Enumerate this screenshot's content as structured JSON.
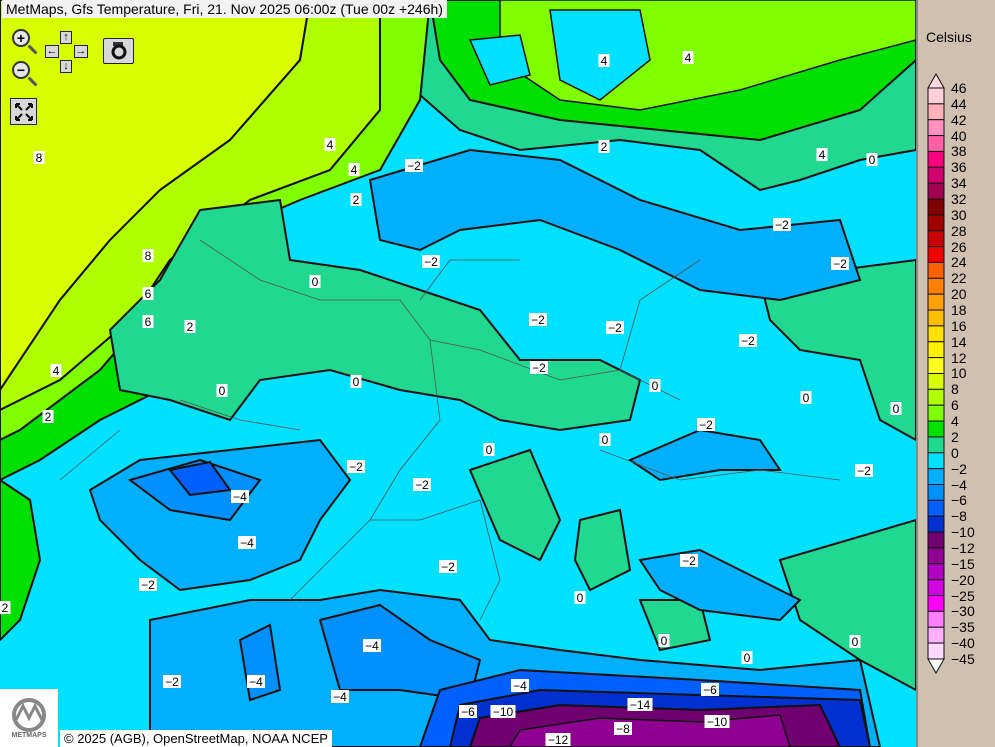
{
  "title": "MetMaps, Gfs Temperature, Fri, 21. Nov 2025 06:00z (Tue 00z +246h)",
  "controls": {
    "zoom_in": "+",
    "zoom_out": "−",
    "pan_up": "↑",
    "pan_down": "↓",
    "pan_left": "←",
    "pan_right": "→",
    "icons": [
      "zoom-in-icon",
      "zoom-out-icon",
      "pan-arrows-icon",
      "camera-icon",
      "fullscreen-icon"
    ]
  },
  "credit": "© 2025 (AGB), OpenStreetMap, NOAA NCEP",
  "logo_text": "METMAPS",
  "legend": {
    "unit": "Celsius",
    "labels": [
      "46",
      "44",
      "42",
      "40",
      "38",
      "36",
      "34",
      "32",
      "30",
      "28",
      "26",
      "24",
      "22",
      "20",
      "18",
      "16",
      "14",
      "12",
      "10",
      "8",
      "6",
      "4",
      "2",
      "0",
      "−2",
      "−4",
      "−6",
      "−8",
      "−10",
      "−12",
      "−15",
      "−20",
      "−25",
      "−30",
      "−35",
      "−40",
      "−45"
    ],
    "colors": [
      "#ffd0d8",
      "#ffb0b8",
      "#ff90c0",
      "#ff60a8",
      "#ff0080",
      "#d00070",
      "#a00050",
      "#800000",
      "#a00000",
      "#c80000",
      "#f00000",
      "#ff6000",
      "#ff8000",
      "#ffa000",
      "#ffc000",
      "#ffe000",
      "#fff000",
      "#ffff20",
      "#d8ff00",
      "#b0ff00",
      "#80ff00",
      "#00e000",
      "#20d890",
      "#00e0ff",
      "#00b0ff",
      "#0090ff",
      "#0060ff",
      "#0030d0",
      "#700070",
      "#900090",
      "#b000c0",
      "#d000e0",
      "#ff00ff",
      "#ff80ff",
      "#ffb0ff",
      "#ffd8ff"
    ],
    "top_arrow_color": "#ffd8e0",
    "bottom_arrow_color": "#ffffff"
  },
  "contour_labels": [
    "8",
    "8",
    "6",
    "6",
    "4",
    "4",
    "2",
    "2",
    "2",
    "0",
    "0",
    "0",
    "0",
    "0",
    "0",
    "0",
    "0",
    "0",
    "0",
    "0",
    "−2",
    "−2",
    "−2",
    "−2",
    "−2",
    "−2",
    "−2",
    "−2",
    "−2",
    "−2",
    "−2",
    "−2",
    "−2",
    "−2",
    "−2",
    "−2",
    "−4",
    "−4",
    "−4",
    "−4",
    "−4",
    "−4",
    "−6",
    "−6",
    "−8",
    "−10",
    "−10",
    "−12",
    "−14",
    "4",
    "4",
    "4",
    "4",
    "2",
    "2",
    "0",
    "0"
  ]
}
